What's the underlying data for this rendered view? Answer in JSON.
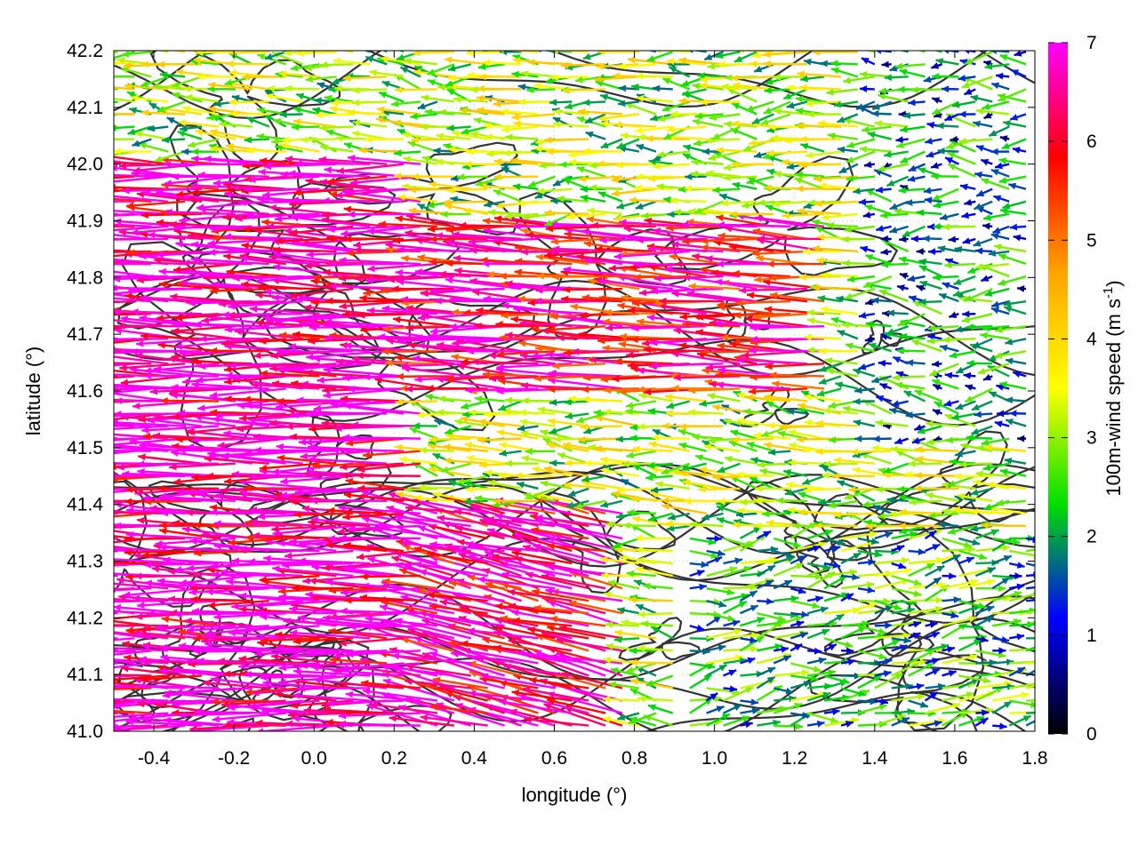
{
  "chart_data": {
    "type": "quiver",
    "xlabel": "longitude (°)",
    "ylabel": "latitude (°)",
    "xlim": [
      -0.5,
      1.8
    ],
    "ylim": [
      41.0,
      42.2
    ],
    "x_ticks": [
      "-0.4",
      "-0.2",
      "0.0",
      "0.2",
      "0.4",
      "0.6",
      "0.8",
      "1.0",
      "1.2",
      "1.4",
      "1.6",
      "1.8"
    ],
    "y_ticks": [
      "41.0",
      "41.1",
      "41.2",
      "41.3",
      "41.4",
      "41.5",
      "41.6",
      "41.7",
      "41.8",
      "41.9",
      "42.0",
      "42.1",
      "42.2"
    ],
    "colorbar": {
      "label": "100m-wind speed (m s",
      "label_exp": "-1",
      "label_end": ")",
      "range": [
        0,
        7
      ],
      "ticks": [
        "0",
        "1",
        "2",
        "3",
        "4",
        "5",
        "6",
        "7"
      ],
      "colors": [
        "#000000",
        "#0000ff",
        "#00e000",
        "#ffff00",
        "#ffa500",
        "#ff0000",
        "#ff00ff"
      ]
    },
    "wind_regions": [
      {
        "lon": [
          -0.5,
          0.3
        ],
        "lat": [
          41.0,
          42.0
        ],
        "u": -6.8,
        "v": 0.1,
        "speed": 6.8
      },
      {
        "lon": [
          0.3,
          0.8
        ],
        "lat": [
          41.0,
          41.4
        ],
        "u": -5.5,
        "v": 1.2,
        "speed": 6.5
      },
      {
        "lon": [
          0.3,
          1.3
        ],
        "lat": [
          41.6,
          41.9
        ],
        "u": -6.0,
        "v": 0.3,
        "speed": 6.2
      },
      {
        "lon": [
          0.5,
          1.4
        ],
        "lat": [
          41.9,
          42.2
        ],
        "u": -2.0,
        "v": 0.0,
        "speed": 3.0
      },
      {
        "lon": [
          1.4,
          1.8
        ],
        "lat": [
          41.5,
          42.2
        ],
        "u": -1.5,
        "v": 0.0,
        "speed": 1.8
      },
      {
        "lon": [
          0.9,
          1.8
        ],
        "lat": [
          41.0,
          41.35
        ],
        "u": 2.0,
        "v": 0.3,
        "speed": 2.2
      }
    ],
    "contours": "terrain elevation isolines",
    "grid": true
  }
}
